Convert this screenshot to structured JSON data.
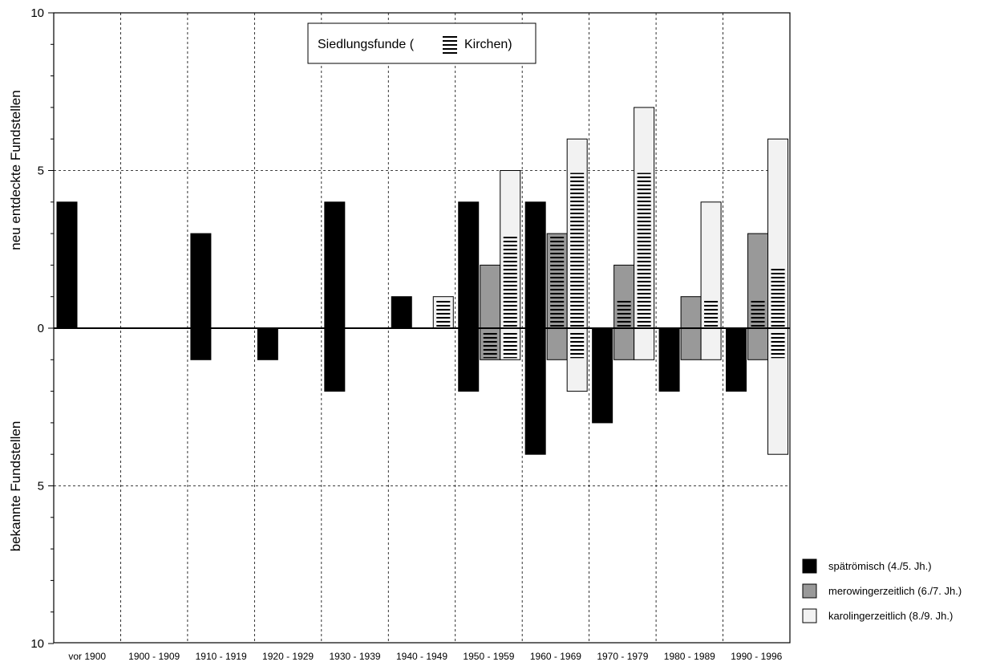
{
  "chart_data": {
    "type": "bar",
    "title": "Siedlungsfunde (",
    "title_suffix": "Kirchen)",
    "ylabel_top": "neu entdeckte Fundstellen",
    "ylabel_bottom": "bekannte Fundstellen",
    "y_ticks_top": [
      "10",
      "5",
      "0"
    ],
    "y_ticks_bottom": [
      "5",
      "10"
    ],
    "ylim": [
      -10,
      10
    ],
    "categories": [
      "vor 1900",
      "1900 - 1909",
      "1910 - 1919",
      "1920 - 1929",
      "1930 - 1939",
      "1940 - 1949",
      "1950 - 1959",
      "1960 - 1969",
      "1970 - 1979",
      "1980 - 1989",
      "1990 - 1996"
    ],
    "grid": true,
    "legend_position": "right",
    "series": [
      {
        "name": "spätrömisch (4./5. Jh.)",
        "color": "#000000",
        "new": [
          4,
          0,
          3,
          0,
          4,
          1,
          4,
          4,
          0,
          0,
          0
        ],
        "known": [
          0,
          0,
          1,
          1,
          2,
          0,
          2,
          4,
          3,
          2,
          2
        ],
        "church_new": [
          0,
          0,
          0,
          0,
          0,
          0,
          0,
          0,
          0,
          0,
          0
        ],
        "church_known": [
          0,
          0,
          0,
          0,
          0,
          0,
          0,
          0,
          0,
          0,
          0
        ]
      },
      {
        "name": "merowingerzeitlich (6./7. Jh.)",
        "color": "#999999",
        "new": [
          0,
          0,
          0,
          0,
          0,
          0,
          2,
          3,
          2,
          1,
          3
        ],
        "known": [
          0,
          0,
          0,
          0,
          0,
          0,
          1,
          1,
          1,
          1,
          1
        ],
        "church_new": [
          0,
          0,
          0,
          0,
          0,
          0,
          0,
          3,
          1,
          0,
          1
        ],
        "church_known": [
          0,
          0,
          0,
          0,
          0,
          0,
          1,
          0,
          0,
          0,
          0
        ]
      },
      {
        "name": "karolingerzeitlich (8./9. Jh.)",
        "color": "#f2f2f2",
        "new": [
          0,
          0,
          0,
          0,
          0,
          1,
          5,
          6,
          7,
          4,
          6
        ],
        "known": [
          0,
          0,
          0,
          0,
          0,
          0,
          1,
          2,
          1,
          1,
          4
        ],
        "church_new": [
          0,
          0,
          0,
          0,
          0,
          1,
          3,
          5,
          5,
          1,
          2
        ],
        "church_known": [
          0,
          0,
          0,
          0,
          0,
          0,
          1,
          1,
          0,
          0,
          1
        ]
      }
    ]
  }
}
